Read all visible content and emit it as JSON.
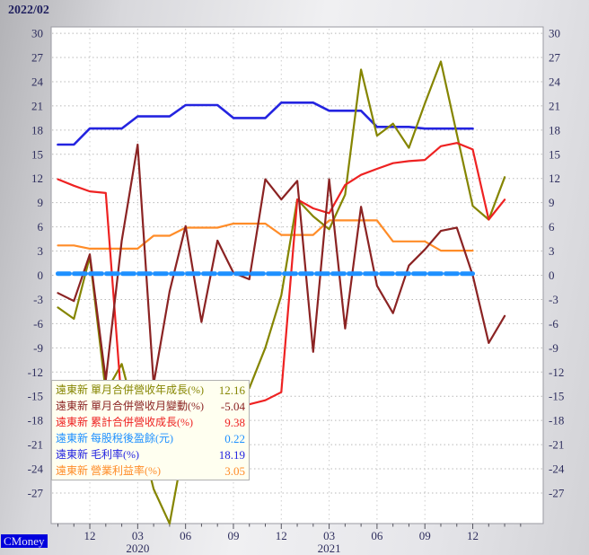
{
  "title": "2022/02",
  "branding": {
    "watermark": "CMoney"
  },
  "chart_data": {
    "type": "line",
    "title": "2022/02",
    "company": "遠東新",
    "x": [
      "2019/10",
      "2019/11",
      "2019/12",
      "2020/01",
      "2020/02",
      "2020/03",
      "2020/04",
      "2020/05",
      "2020/06",
      "2020/07",
      "2020/08",
      "2020/09",
      "2020/10",
      "2020/11",
      "2020/12",
      "2021/01",
      "2021/02",
      "2021/03",
      "2021/04",
      "2021/05",
      "2021/06",
      "2021/07",
      "2021/08",
      "2021/09",
      "2021/10",
      "2021/11",
      "2021/12",
      "2022/01",
      "2022/02"
    ],
    "x_axis": {
      "major_ticks": [
        {
          "index": 2,
          "label": "12"
        },
        {
          "index": 5,
          "label": "03",
          "year": "2020"
        },
        {
          "index": 8,
          "label": "06"
        },
        {
          "index": 11,
          "label": "09"
        },
        {
          "index": 14,
          "label": "12"
        },
        {
          "index": 17,
          "label": "03",
          "year": "2021"
        },
        {
          "index": 20,
          "label": "06"
        },
        {
          "index": 23,
          "label": "09"
        },
        {
          "index": 26,
          "label": "12"
        }
      ]
    },
    "y_axis": {
      "ticks": [
        30,
        27,
        24,
        21,
        18,
        15,
        12,
        9,
        6,
        3,
        0,
        -3,
        -6,
        -9,
        -12,
        -15,
        -18,
        -21,
        -24,
        -27
      ],
      "min": -31,
      "max": 30.5,
      "labels_on_both_sides": true,
      "grid": "dotted"
    },
    "legend_position": "overlay-bottom-left",
    "series": [
      {
        "key": "monthly-revenue-yoy-growth",
        "legend_label": "遠東新 單月合併營收年成長(%)",
        "value_label": "12.16",
        "latest_value": 12.16,
        "color": "#858500",
        "values": [
          -4,
          -5.4,
          2.3,
          -14.5,
          -11,
          -18.5,
          -26.5,
          -30.8,
          -20,
          -15.5,
          -16.5,
          -15,
          -14,
          -9,
          -2.5,
          9.4,
          7.3,
          5.7,
          10,
          25.5,
          17.3,
          18.8,
          15.8,
          21.3,
          26.5,
          17.5,
          8.6,
          6.9,
          12.16
        ]
      },
      {
        "key": "monthly-revenue-mom-change",
        "legend_label": "遠東新 單月合併營收月變動(%)",
        "value_label": "-5.04",
        "latest_value": -5.04,
        "color": "#8b2323",
        "values": [
          -2.2,
          -3.2,
          2.6,
          -13,
          4.3,
          16.2,
          -13.5,
          -2,
          6.1,
          -5.8,
          4.3,
          0.3,
          -0.5,
          11.9,
          9.4,
          11.7,
          -9.5,
          11.9,
          -6.6,
          8.5,
          -1.3,
          -4.7,
          1.2,
          3.2,
          5.5,
          5.9,
          0,
          -8.4,
          -5.04
        ]
      },
      {
        "key": "cumulative-revenue-growth",
        "legend_label": "遠東新 累計合併營收成長(%)",
        "value_label": "9.38",
        "latest_value": 9.38,
        "color": "#ee2222",
        "values": [
          11.9,
          11.1,
          10.4,
          10.2,
          -16,
          -17,
          -19.5,
          -21,
          -20,
          -19,
          -18,
          -17,
          -16,
          -15.5,
          -14.5,
          9.4,
          8.3,
          7.7,
          11.2,
          12.45,
          13.2,
          13.9,
          14.15,
          14.3,
          16,
          16.4,
          15.6,
          6.9,
          9.38
        ]
      },
      {
        "key": "eps-after-tax",
        "legend_label": "遠東新 每股稅後盈餘(元)",
        "value_label": "0.22",
        "latest_value": 0.22,
        "color": "#1e90ff",
        "dashed": true,
        "values": [
          0.2,
          0.2,
          0.2,
          0.2,
          0.2,
          0.2,
          0.2,
          0.2,
          0.2,
          0.2,
          0.2,
          0.2,
          0.2,
          0.2,
          0.2,
          0.2,
          0.2,
          0.2,
          0.2,
          0.2,
          0.2,
          0.2,
          0.2,
          0.2,
          0.2,
          0.2,
          0.2,
          null,
          null
        ]
      },
      {
        "key": "gross-margin",
        "legend_label": "遠東新 毛利率(%)",
        "value_label": "18.19",
        "latest_value": 18.19,
        "color": "#2424e0",
        "values": [
          16.2,
          16.2,
          18.2,
          18.2,
          18.2,
          19.7,
          19.7,
          19.7,
          21.1,
          21.1,
          21.1,
          19.5,
          19.5,
          19.5,
          21.4,
          21.4,
          21.4,
          20.4,
          20.4,
          20.4,
          18.4,
          18.4,
          18.4,
          18.19,
          18.19,
          18.19,
          18.19,
          null,
          null
        ]
      },
      {
        "key": "operating-margin",
        "legend_label": "遠東新 營業利益率(%)",
        "value_label": "3.05",
        "latest_value": 3.05,
        "color": "#ff8c28",
        "values": [
          3.7,
          3.7,
          3.3,
          3.3,
          3.3,
          3.3,
          4.9,
          4.9,
          5.9,
          5.9,
          5.9,
          6.4,
          6.4,
          6.4,
          5,
          5,
          5,
          6.8,
          6.8,
          6.8,
          6.8,
          4.2,
          4.2,
          4.2,
          3.05,
          3.05,
          3.05,
          null,
          null
        ]
      }
    ]
  }
}
